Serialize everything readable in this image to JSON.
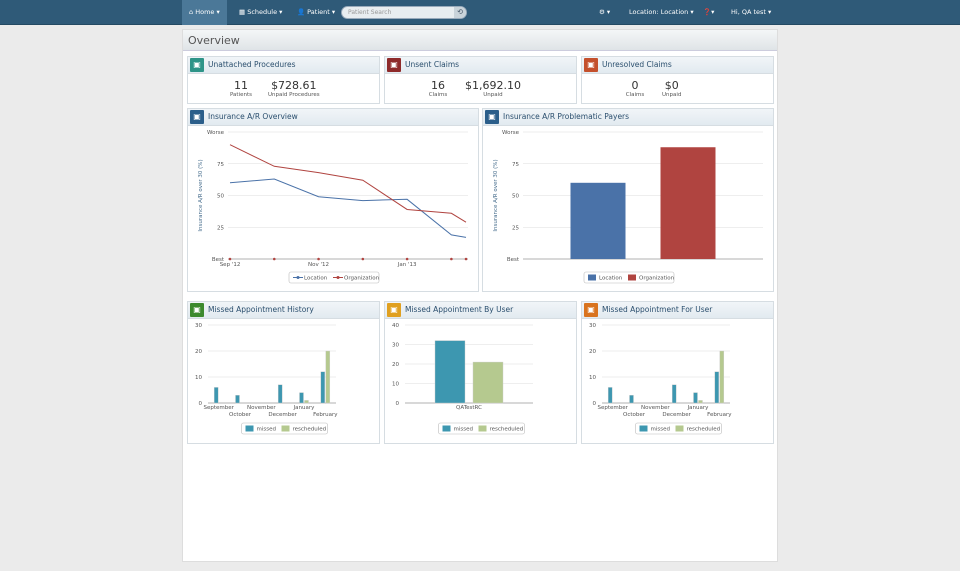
{
  "nav": {
    "home": "Home",
    "schedule": "Schedule",
    "patient": "Patient",
    "search_placeholder": "Patient Search",
    "settings_icon": "gear-icon",
    "location": "Location: Location",
    "help_icon": "question-icon",
    "user": "Hi,  QA test"
  },
  "page_title": "Overview",
  "colors": {
    "nav": "#2f5a78",
    "location": "#4a72a8",
    "organization": "#b04440",
    "missed": "#3d97b0",
    "rescheduled": "#b5c98f"
  },
  "cards": [
    {
      "title": "Unattached Procedures",
      "icon": "procedure-icon",
      "color": "#2e9488",
      "stats": [
        {
          "value": "11",
          "label": "Patients"
        },
        {
          "value": "$728.61",
          "label": "Unpaid Procedures"
        }
      ]
    },
    {
      "title": "Unsent Claims",
      "icon": "claim-lock-icon",
      "color": "#8e2a2a",
      "stats": [
        {
          "value": "16",
          "label": "Claims"
        },
        {
          "value": "$1,692.10",
          "label": "Unpaid"
        }
      ]
    },
    {
      "title": "Unresolved Claims",
      "icon": "claim-x-icon",
      "color": "#c4502c",
      "stats": [
        {
          "value": "0",
          "label": "Claims"
        },
        {
          "value": "$0",
          "label": "Unpaid"
        }
      ]
    }
  ],
  "chart_data": [
    {
      "title": "Insurance A/R Overview",
      "type": "line",
      "ylabel": "Insurance A/R over 30 (%)",
      "ylim": [
        0,
        100
      ],
      "yticks": [
        "Best",
        "25",
        "50",
        "75",
        "Worse"
      ],
      "xticks": [
        "Sep '12",
        "Nov '12",
        "Jan '13"
      ],
      "x": [
        "2012-09",
        "2012-10",
        "2012-11",
        "2012-12",
        "2013-01",
        "2013-02",
        "2013-02b"
      ],
      "series": [
        {
          "name": "Location",
          "values": [
            60,
            63,
            49,
            46,
            47,
            19,
            17
          ]
        },
        {
          "name": "Organization",
          "values": [
            90,
            73,
            68,
            62,
            39,
            36,
            29
          ]
        }
      ],
      "legend": "bottom"
    },
    {
      "title": "Insurance A/R Problematic Payers",
      "type": "bar",
      "ylabel": "Insurance A/R over 30 (%)",
      "ylim": [
        0,
        100
      ],
      "yticks": [
        "Best",
        "25",
        "50",
        "75",
        "Worse"
      ],
      "series": [
        {
          "name": "Location",
          "values": [
            60
          ]
        },
        {
          "name": "Organization",
          "values": [
            88
          ]
        }
      ],
      "legend": "bottom"
    },
    {
      "title": "Missed Appointment History",
      "type": "bar",
      "ylim": [
        0,
        30
      ],
      "yticks": [
        "0",
        "10",
        "20",
        "30"
      ],
      "categories": [
        "September",
        "October",
        "November",
        "December",
        "January",
        "February"
      ],
      "series": [
        {
          "name": "missed",
          "values": [
            6,
            3,
            0,
            7,
            4,
            12
          ]
        },
        {
          "name": "rescheduled",
          "values": [
            0,
            0,
            0,
            0,
            1,
            20
          ]
        }
      ],
      "legend": "bottom"
    },
    {
      "title": "Missed Appointment By User",
      "type": "bar",
      "ylim": [
        0,
        40
      ],
      "yticks": [
        "0",
        "10",
        "20",
        "30",
        "40"
      ],
      "categories": [
        "QATestRC"
      ],
      "series": [
        {
          "name": "missed",
          "values": [
            32
          ]
        },
        {
          "name": "rescheduled",
          "values": [
            21
          ]
        }
      ],
      "legend": "bottom"
    },
    {
      "title": "Missed Appointment For User",
      "type": "bar",
      "ylim": [
        0,
        30
      ],
      "yticks": [
        "0",
        "10",
        "20",
        "30"
      ],
      "categories": [
        "September",
        "October",
        "November",
        "December",
        "January",
        "February"
      ],
      "series": [
        {
          "name": "missed",
          "values": [
            6,
            3,
            0,
            7,
            4,
            12
          ]
        },
        {
          "name": "rescheduled",
          "values": [
            0,
            0,
            0,
            0,
            1,
            20
          ]
        }
      ],
      "legend": "bottom"
    }
  ],
  "chart_icons": [
    {
      "icon": "insurance-shield-icon",
      "color": "#2b5e8a"
    },
    {
      "icon": "insurance-shield-icon",
      "color": "#2b5e8a"
    },
    {
      "icon": "calendar-icon",
      "color": "#3d8a2e"
    },
    {
      "icon": "calendar-user-icon",
      "color": "#e0a020"
    },
    {
      "icon": "calendar-user-icon",
      "color": "#d9731e"
    }
  ]
}
